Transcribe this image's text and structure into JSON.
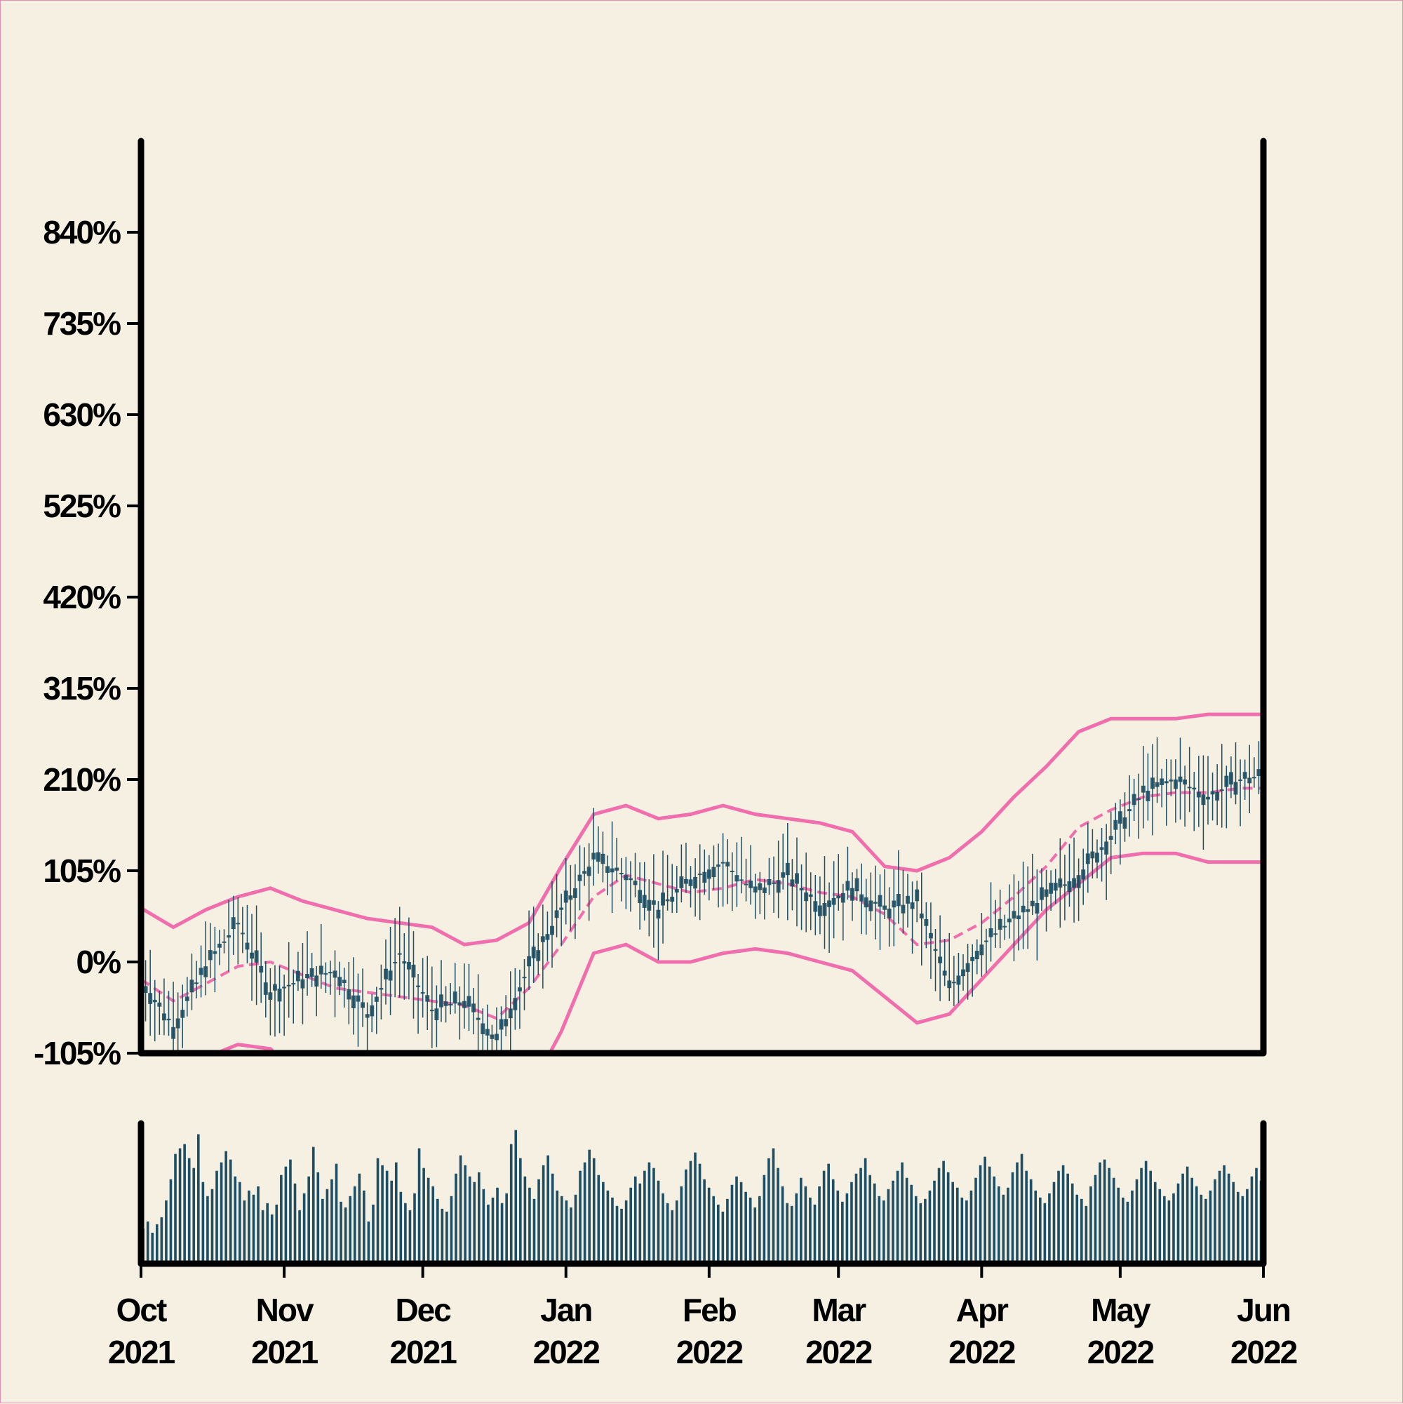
{
  "chart_data": {
    "type": "candlestick",
    "x_range": [
      "2021-10-01",
      "2022-06-01"
    ],
    "y_unit": "%",
    "ylim": [
      -105,
      945
    ],
    "y_ticks": [
      {
        "value": -105,
        "label": "-105%"
      },
      {
        "value": 0,
        "label": "0%"
      },
      {
        "value": 105,
        "label": "105%"
      },
      {
        "value": 210,
        "label": "210%"
      },
      {
        "value": 315,
        "label": "315%"
      },
      {
        "value": 420,
        "label": "420%"
      },
      {
        "value": 525,
        "label": "525%"
      },
      {
        "value": 630,
        "label": "630%"
      },
      {
        "value": 735,
        "label": "735%"
      },
      {
        "value": 840,
        "label": "840%"
      }
    ],
    "x_ticks": [
      {
        "date": "2021-10-01",
        "month": "Oct",
        "year": "2021"
      },
      {
        "date": "2021-11-01",
        "month": "Nov",
        "year": "2021"
      },
      {
        "date": "2021-12-01",
        "month": "Dec",
        "year": "2021"
      },
      {
        "date": "2022-01-01",
        "month": "Jan",
        "year": "2022"
      },
      {
        "date": "2022-02-01",
        "month": "Feb",
        "year": "2022"
      },
      {
        "date": "2022-03-01",
        "month": "Mar",
        "year": "2022"
      },
      {
        "date": "2022-04-01",
        "month": "Apr",
        "year": "2022"
      },
      {
        "date": "2022-05-01",
        "month": "May",
        "year": "2022"
      },
      {
        "date": "2022-06-01",
        "month": "Jun",
        "year": "2022"
      }
    ],
    "price_series": {
      "name": "",
      "color": "#1d4e63",
      "dates": [
        "2021-10-01",
        "2021-10-08",
        "2021-10-15",
        "2021-10-22",
        "2021-10-29",
        "2021-11-05",
        "2021-11-12",
        "2021-11-19",
        "2021-11-26",
        "2021-12-03",
        "2021-12-10",
        "2021-12-17",
        "2021-12-24",
        "2021-12-31",
        "2022-01-07",
        "2022-01-14",
        "2022-01-21",
        "2022-01-28",
        "2022-02-04",
        "2022-02-11",
        "2022-02-18",
        "2022-02-25",
        "2022-03-04",
        "2022-03-11",
        "2022-03-18",
        "2022-03-25",
        "2022-04-01",
        "2022-04-08",
        "2022-04-15",
        "2022-04-22",
        "2022-04-29",
        "2022-05-06",
        "2022-05-13",
        "2022-05-20",
        "2022-05-27",
        "2022-06-01"
      ],
      "values": [
        -20,
        -75,
        -5,
        45,
        -35,
        -20,
        -10,
        -60,
        10,
        -55,
        -45,
        -90,
        -5,
        60,
        118,
        100,
        60,
        95,
        115,
        80,
        100,
        65,
        85,
        60,
        70,
        -30,
        20,
        50,
        75,
        100,
        145,
        195,
        210,
        190,
        210,
        215
      ]
    },
    "bands": {
      "color": "#f06ead",
      "dates": [
        "2021-10-01",
        "2021-10-08",
        "2021-10-15",
        "2021-10-22",
        "2021-10-29",
        "2021-11-05",
        "2021-11-12",
        "2021-11-19",
        "2021-11-26",
        "2021-12-03",
        "2021-12-10",
        "2021-12-17",
        "2021-12-24",
        "2021-12-31",
        "2022-01-07",
        "2022-01-14",
        "2022-01-21",
        "2022-01-28",
        "2022-02-04",
        "2022-02-11",
        "2022-02-18",
        "2022-02-25",
        "2022-03-04",
        "2022-03-11",
        "2022-03-18",
        "2022-03-25",
        "2022-04-01",
        "2022-04-08",
        "2022-04-15",
        "2022-04-22",
        "2022-04-29",
        "2022-05-06",
        "2022-05-13",
        "2022-05-20",
        "2022-05-27",
        "2022-06-01"
      ],
      "upper": [
        62,
        40,
        60,
        75,
        85,
        70,
        60,
        50,
        45,
        40,
        20,
        25,
        45,
        110,
        170,
        180,
        165,
        170,
        180,
        170,
        165,
        160,
        150,
        110,
        105,
        120,
        150,
        190,
        225,
        265,
        280,
        280,
        280,
        285,
        285,
        285
      ],
      "middle": [
        -20,
        -45,
        -25,
        -5,
        0,
        -15,
        -30,
        -35,
        -40,
        -45,
        -50,
        -65,
        -30,
        20,
        75,
        100,
        90,
        80,
        85,
        95,
        90,
        80,
        75,
        55,
        20,
        25,
        45,
        75,
        110,
        155,
        175,
        190,
        195,
        195,
        200,
        200
      ],
      "lower": [
        -180,
        -130,
        -110,
        -95,
        -100,
        -135,
        -150,
        -170,
        -170,
        -170,
        -170,
        -175,
        -150,
        -80,
        10,
        20,
        0,
        0,
        10,
        15,
        10,
        0,
        -10,
        -40,
        -70,
        -60,
        -20,
        20,
        60,
        90,
        120,
        125,
        125,
        115,
        115,
        115
      ]
    },
    "volume": {
      "color": "#1d4e63",
      "values": [
        25,
        30,
        22,
        28,
        33,
        45,
        60,
        78,
        82,
        85,
        75,
        68,
        92,
        58,
        48,
        53,
        66,
        72,
        80,
        74,
        62,
        58,
        45,
        52,
        49,
        55,
        38,
        43,
        35,
        42,
        63,
        69,
        74,
        57,
        38,
        50,
        62,
        83,
        65,
        46,
        53,
        60,
        71,
        44,
        40,
        48,
        55,
        64,
        52,
        30,
        42,
        75,
        70,
        66,
        59,
        72,
        51,
        43,
        38,
        50,
        82,
        68,
        61,
        55,
        46,
        39,
        37,
        48,
        64,
        77,
        70,
        62,
        58,
        65,
        53,
        42,
        47,
        54,
        43,
        50,
        85,
        95,
        75,
        62,
        54,
        46,
        60,
        70,
        77,
        64,
        52,
        48,
        45,
        40,
        49,
        66,
        72,
        81,
        75,
        63,
        58,
        52,
        47,
        41,
        39,
        45,
        54,
        62,
        57,
        66,
        72,
        68,
        59,
        50,
        43,
        38,
        45,
        55,
        67,
        73,
        79,
        71,
        60,
        54,
        48,
        42,
        37,
        46,
        56,
        62,
        58,
        51,
        47,
        40,
        48,
        63,
        75,
        82,
        68,
        55,
        43,
        41,
        50,
        61,
        55,
        47,
        42,
        55,
        66,
        71,
        60,
        52,
        44,
        50,
        58,
        64,
        68,
        75,
        63,
        57,
        48,
        45,
        53,
        59,
        66,
        72,
        61,
        56,
        48,
        43,
        46,
        52,
        59,
        68,
        73,
        65,
        58,
        54,
        47,
        45,
        52,
        61,
        70,
        76,
        69,
        62,
        55,
        49,
        54,
        65,
        72,
        78,
        66,
        60,
        52,
        47,
        43,
        50,
        58,
        66,
        70,
        64,
        57,
        49,
        46,
        41,
        55,
        63,
        72,
        74,
        68,
        61,
        54,
        47,
        44,
        52,
        60,
        68,
        73,
        66,
        58,
        53,
        48,
        45,
        50,
        57,
        64,
        69,
        61,
        55,
        49,
        46,
        52,
        60,
        66,
        70,
        64,
        58,
        51,
        48,
        53,
        62,
        68,
        59
      ]
    }
  }
}
